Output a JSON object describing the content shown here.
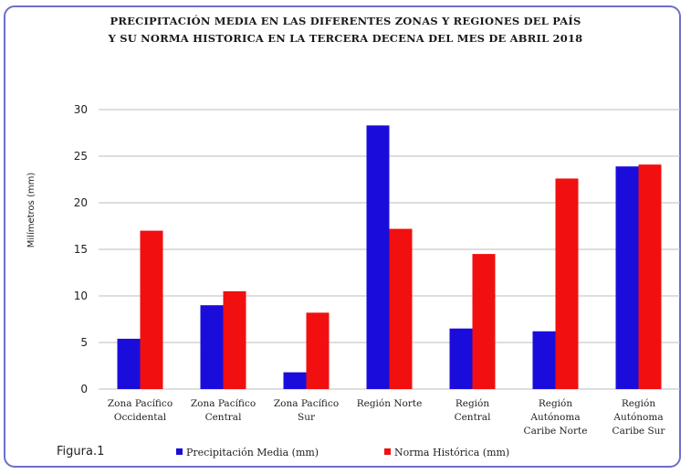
{
  "figure_label": "Figura.1",
  "chart_data": {
    "type": "bar",
    "title_lines": [
      "PRECIPITACIÓN MEDIA EN LAS DIFERENTES ZONAS Y REGIONES DEL PAÍS",
      "Y SU NORMA HISTORICA EN LA TERCERA DECENA DEL MES DE ABRIL 2018"
    ],
    "ylabel": "Milímetros (mm)",
    "ylim": [
      0,
      30
    ],
    "yticks": [
      0,
      5,
      10,
      15,
      20,
      25,
      30
    ],
    "grid": true,
    "legend_position": "bottom",
    "categories": [
      [
        "Zona Pacífico",
        "Occidental"
      ],
      [
        "Zona Pacífico",
        "Central"
      ],
      [
        "Zona Pacífico",
        "Sur"
      ],
      [
        "Región Norte"
      ],
      [
        "Región",
        "Central"
      ],
      [
        "Región",
        "Autónoma",
        "Caribe Norte"
      ],
      [
        "Región",
        "Autónoma",
        "Caribe Sur"
      ]
    ],
    "series": [
      {
        "name": "Precipitación Media (mm)",
        "color": "#1a0ddb",
        "values": [
          5.4,
          9.0,
          1.8,
          28.3,
          6.5,
          6.2,
          23.9
        ]
      },
      {
        "name": "Norma Histórica (mm)",
        "color": "#f20f0f",
        "values": [
          17.0,
          10.5,
          8.2,
          17.2,
          14.5,
          22.6,
          24.1
        ]
      }
    ]
  }
}
